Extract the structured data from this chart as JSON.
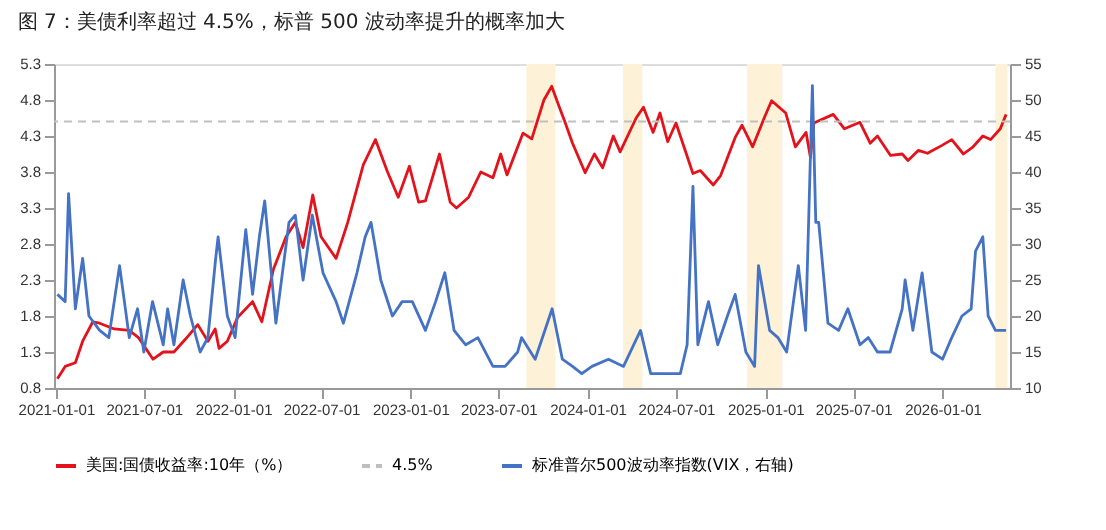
{
  "chart_data": {
    "type": "line",
    "title": "图 7：美债利率超过 4.5%，标普 500 波动率提升的概率加大",
    "xlim": [
      "2020-12-28",
      "2026-05-20"
    ],
    "xticks": [
      "2021-01-01",
      "2021-07-01",
      "2022-01-01",
      "2022-07-01",
      "2023-01-01",
      "2023-07-01",
      "2024-01-01",
      "2024-07-01",
      "2025-01-01",
      "2025-07-01",
      "2026-01-01"
    ],
    "ylim": [
      0.8,
      5.3
    ],
    "yticks": [
      0.8,
      1.3,
      1.8,
      2.3,
      2.8,
      3.3,
      3.8,
      4.3,
      4.8,
      5.3
    ],
    "y2lim": [
      10,
      55
    ],
    "y2ticks": [
      10,
      15,
      20,
      25,
      30,
      35,
      40,
      45,
      50,
      55
    ],
    "grid": false,
    "legend": "bottom",
    "line_style": "solid",
    "ref_lines": [
      {
        "axis": "y",
        "value": 4.5,
        "label": "4.5%",
        "color": "#bfbfbf",
        "line_style": "dashed"
      }
    ],
    "bands": [
      {
        "axis": "x",
        "from": "2023-08-28",
        "to": "2023-10-27",
        "color": "#fdf2d8"
      },
      {
        "axis": "x",
        "from": "2024-03-14",
        "to": "2024-04-23",
        "color": "#fdf2d8"
      },
      {
        "axis": "x",
        "from": "2024-11-24",
        "to": "2025-02-05",
        "color": "#fdf2d8"
      },
      {
        "axis": "x",
        "from": "2026-04-20",
        "to": "2026-05-15",
        "color": "#fdf2d8"
      }
    ],
    "series": [
      {
        "name": "美国:国债收益率:10年（%）",
        "color": "#e3121b",
        "x": [
          "2021-01-04",
          "2021-01-20",
          "2021-02-10",
          "2021-02-25",
          "2021-03-18",
          "2021-04-01",
          "2021-05-01",
          "2021-06-01",
          "2021-06-20",
          "2021-07-20",
          "2021-08-10",
          "2021-09-01",
          "2021-09-25",
          "2021-10-20",
          "2021-11-10",
          "2021-11-25",
          "2021-12-03",
          "2021-12-20",
          "2022-01-10",
          "2022-02-10",
          "2022-03-01",
          "2022-03-25",
          "2022-04-20",
          "2022-05-09",
          "2022-05-25",
          "2022-06-14",
          "2022-07-01",
          "2022-08-01",
          "2022-08-25",
          "2022-09-26",
          "2022-10-21",
          "2022-11-15",
          "2022-12-07",
          "2022-12-30",
          "2023-01-18",
          "2023-02-01",
          "2023-03-02",
          "2023-03-24",
          "2023-04-06",
          "2023-05-01",
          "2023-05-26",
          "2023-06-20",
          "2023-07-06",
          "2023-07-19",
          "2023-08-21",
          "2023-09-08",
          "2023-10-03",
          "2023-10-19",
          "2023-11-01",
          "2023-11-15",
          "2023-12-01",
          "2023-12-27",
          "2024-01-15",
          "2024-02-01",
          "2024-02-23",
          "2024-03-08",
          "2024-04-10",
          "2024-04-25",
          "2024-05-15",
          "2024-05-29",
          "2024-06-14",
          "2024-07-01",
          "2024-08-05",
          "2024-08-20",
          "2024-09-16",
          "2024-10-01",
          "2024-10-31",
          "2024-11-14",
          "2024-12-06",
          "2024-12-31",
          "2025-01-14",
          "2025-02-12",
          "2025-03-04",
          "2025-03-26",
          "2025-04-04",
          "2025-04-11",
          "2025-05-21",
          "2025-06-13",
          "2025-07-15",
          "2025-08-05",
          "2025-08-20",
          "2025-09-16",
          "2025-10-10",
          "2025-10-22",
          "2025-11-12",
          "2025-12-01",
          "2025-12-31",
          "2026-01-20",
          "2026-02-13",
          "2026-03-05",
          "2026-03-25",
          "2026-04-10",
          "2026-04-30",
          "2026-05-12"
        ],
        "values": [
          0.93,
          1.1,
          1.15,
          1.45,
          1.72,
          1.7,
          1.62,
          1.6,
          1.5,
          1.2,
          1.3,
          1.3,
          1.48,
          1.68,
          1.45,
          1.62,
          1.35,
          1.45,
          1.78,
          2.0,
          1.72,
          2.45,
          2.9,
          3.1,
          2.75,
          3.48,
          2.9,
          2.6,
          3.1,
          3.9,
          4.25,
          3.8,
          3.45,
          3.88,
          3.38,
          3.4,
          4.05,
          3.38,
          3.3,
          3.45,
          3.8,
          3.72,
          4.05,
          3.76,
          4.34,
          4.26,
          4.8,
          4.99,
          4.75,
          4.5,
          4.2,
          3.79,
          4.05,
          3.86,
          4.3,
          4.08,
          4.55,
          4.7,
          4.35,
          4.62,
          4.22,
          4.48,
          3.78,
          3.82,
          3.62,
          3.75,
          4.28,
          4.45,
          4.15,
          4.57,
          4.79,
          4.62,
          4.15,
          4.35,
          4.0,
          4.48,
          4.6,
          4.4,
          4.49,
          4.2,
          4.3,
          4.03,
          4.05,
          3.96,
          4.1,
          4.06,
          4.17,
          4.25,
          4.05,
          4.15,
          4.3,
          4.25,
          4.4,
          4.6
        ]
      },
      {
        "name": "标准普尔500波动率指数(VIX，右轴)",
        "color": "#4472c4",
        "axis": "y2",
        "x": [
          "2021-01-04",
          "2021-01-20",
          "2021-01-27",
          "2021-02-10",
          "2021-02-25",
          "2021-03-10",
          "2021-04-01",
          "2021-04-20",
          "2021-05-12",
          "2021-06-01",
          "2021-06-18",
          "2021-07-01",
          "2021-07-19",
          "2021-08-10",
          "2021-08-19",
          "2021-09-01",
          "2021-09-20",
          "2021-10-05",
          "2021-10-25",
          "2021-11-10",
          "2021-11-26",
          "2021-12-01",
          "2021-12-20",
          "2022-01-05",
          "2022-01-27",
          "2022-02-10",
          "2022-02-24",
          "2022-03-07",
          "2022-03-30",
          "2022-04-26",
          "2022-05-09",
          "2022-05-25",
          "2022-06-13",
          "2022-07-05",
          "2022-08-01",
          "2022-08-16",
          "2022-09-13",
          "2022-09-30",
          "2022-10-12",
          "2022-11-01",
          "2022-11-25",
          "2022-12-15",
          "2023-01-05",
          "2023-02-01",
          "2023-02-22",
          "2023-03-13",
          "2023-04-01",
          "2023-04-25",
          "2023-05-20",
          "2023-06-20",
          "2023-07-15",
          "2023-08-10",
          "2023-08-18",
          "2023-09-15",
          "2023-10-20",
          "2023-11-10",
          "2023-12-01",
          "2023-12-20",
          "2024-01-10",
          "2024-02-13",
          "2024-03-15",
          "2024-04-19",
          "2024-05-10",
          "2024-06-10",
          "2024-07-10",
          "2024-07-24",
          "2024-08-05",
          "2024-08-15",
          "2024-09-06",
          "2024-09-25",
          "2024-10-15",
          "2024-10-31",
          "2024-11-22",
          "2024-12-10",
          "2024-12-18",
          "2025-01-10",
          "2025-01-27",
          "2025-02-14",
          "2025-03-10",
          "2025-03-25",
          "2025-04-08",
          "2025-04-15",
          "2025-04-21",
          "2025-05-10",
          "2025-06-01",
          "2025-06-20",
          "2025-07-15",
          "2025-08-01",
          "2025-08-20",
          "2025-09-15",
          "2025-10-10",
          "2025-10-16",
          "2025-11-01",
          "2025-11-20",
          "2025-12-10",
          "2026-01-01",
          "2026-01-20",
          "2026-02-10",
          "2026-03-01",
          "2026-03-10",
          "2026-03-25",
          "2026-04-05",
          "2026-04-20",
          "2026-05-12"
        ],
        "values": [
          23,
          22,
          37,
          21,
          28,
          20,
          18,
          17,
          27,
          17,
          21,
          15,
          22,
          16,
          21,
          16,
          25,
          20,
          15,
          17,
          28,
          31,
          20,
          17,
          32,
          23,
          31,
          36,
          19,
          33,
          34,
          25,
          34,
          26,
          22,
          19,
          26,
          31,
          33,
          25,
          20,
          22,
          22,
          18,
          22,
          26,
          18,
          16,
          17,
          13,
          13,
          15,
          17,
          14,
          21,
          14,
          13,
          12,
          13,
          14,
          13,
          18,
          12,
          12,
          12,
          16,
          38,
          16,
          22,
          16,
          20,
          23,
          15,
          13,
          27,
          18,
          17,
          15,
          27,
          18,
          52,
          33,
          33,
          19,
          18,
          21,
          16,
          17,
          15,
          15,
          21,
          25,
          18,
          26,
          15,
          14,
          17,
          20,
          21,
          29,
          31,
          20,
          18,
          18
        ]
      }
    ]
  }
}
